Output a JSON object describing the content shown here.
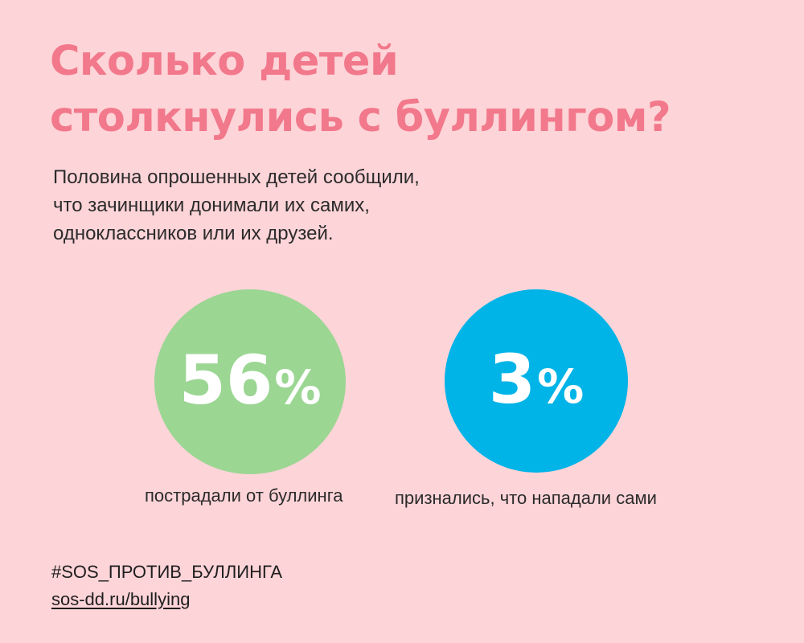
{
  "title": {
    "line1": "Сколько детей",
    "line2": "столкнулись с буллингом?"
  },
  "subtitle": {
    "line1": "Половина опрошенных детей сообщили,",
    "line2": "что зачинщики донимали их самих,",
    "line3": "одноклассников или их друзей."
  },
  "stats": [
    {
      "number": "56",
      "percent": "%",
      "caption": "пострадали от буллинга",
      "color": "#9bd693"
    },
    {
      "number": "3",
      "percent": "%",
      "caption": "признались, что нападали сами",
      "color": "#00b4e7"
    }
  ],
  "footer": {
    "hashtag": "#SOS_ПРОТИВ_БУЛЛИНГА",
    "link": "sos-dd.ru/bullying"
  },
  "colors": {
    "background": "#fdd4d8",
    "title": "#f2788b",
    "text": "#2b2b2b"
  }
}
